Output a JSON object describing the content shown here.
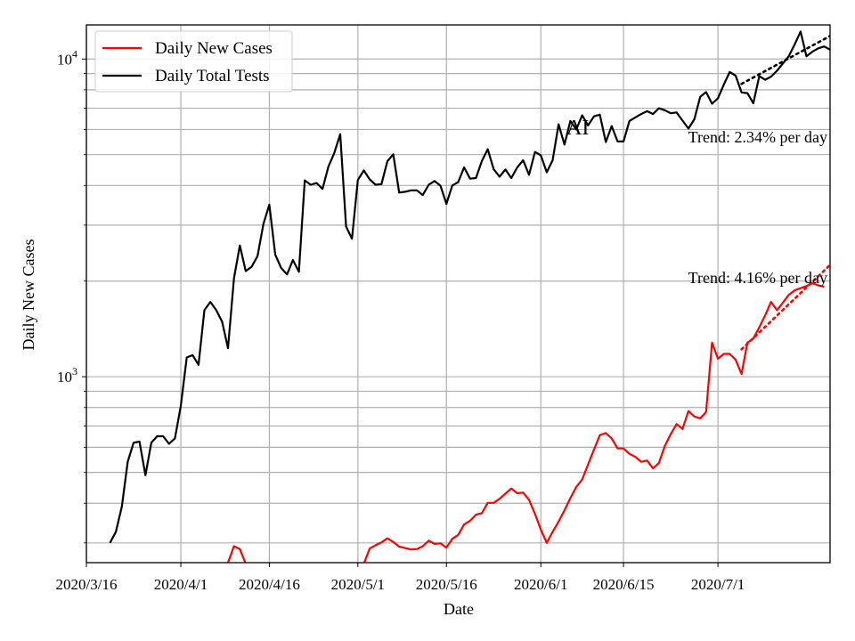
{
  "chart_data": {
    "type": "line",
    "title": "",
    "xlabel": "Date",
    "ylabel": "Daily New Cases",
    "y_scale": "log",
    "ylim": [
      260,
      12800
    ],
    "x_tick_labels": [
      "2020/3/16",
      "2020/4/1",
      "2020/4/16",
      "2020/5/1",
      "2020/5/16",
      "2020/6/1",
      "2020/6/15",
      "2020/7/1"
    ],
    "x_tick_dates": [
      "2020-03-16",
      "2020-04-01",
      "2020-04-16",
      "2020-05-01",
      "2020-05-16",
      "2020-06-01",
      "2020-06-15",
      "2020-07-01"
    ],
    "x_range": [
      "2020-03-16",
      "2020-07-20"
    ],
    "y_major_ticks": [
      {
        "value": 1000,
        "base": "10",
        "exp": "3"
      },
      {
        "value": 10000,
        "base": "10",
        "exp": "4"
      }
    ],
    "y_minor_ticks": [
      300,
      400,
      500,
      600,
      700,
      800,
      900,
      2000,
      3000,
      4000,
      5000,
      6000,
      7000,
      8000,
      9000
    ],
    "grid": true,
    "legend_position": "top-left",
    "series": [
      {
        "name": "Daily New Cases",
        "color": "#ff0000",
        "points": [
          [
            "2020-04-09",
            260
          ],
          [
            "2020-04-10",
            293
          ],
          [
            "2020-04-11",
            287
          ],
          [
            "2020-04-12",
            258
          ]
        ],
        "points_b": [
          [
            "2020-05-02",
            258
          ],
          [
            "2020-05-03",
            288
          ],
          [
            "2020-05-04",
            295
          ],
          [
            "2020-05-05",
            301
          ],
          [
            "2020-05-06",
            310
          ],
          [
            "2020-05-07",
            302
          ],
          [
            "2020-05-08",
            292
          ],
          [
            "2020-05-09",
            289
          ],
          [
            "2020-05-10",
            286
          ],
          [
            "2020-05-11",
            287
          ],
          [
            "2020-05-12",
            293
          ],
          [
            "2020-05-13",
            305
          ],
          [
            "2020-05-14",
            298
          ],
          [
            "2020-05-15",
            299
          ],
          [
            "2020-05-16",
            290
          ],
          [
            "2020-05-17",
            309
          ],
          [
            "2020-05-18",
            318
          ],
          [
            "2020-05-19",
            343
          ],
          [
            "2020-05-20",
            352
          ],
          [
            "2020-05-21",
            368
          ],
          [
            "2020-05-22",
            372
          ],
          [
            "2020-05-23",
            401
          ],
          [
            "2020-05-24",
            401
          ],
          [
            "2020-05-25",
            413
          ],
          [
            "2020-05-26",
            429
          ],
          [
            "2020-05-27",
            445
          ],
          [
            "2020-05-28",
            430
          ],
          [
            "2020-05-29",
            432
          ],
          [
            "2020-05-30",
            410
          ],
          [
            "2020-05-31",
            370
          ],
          [
            "2020-06-01",
            330
          ],
          [
            "2020-06-02",
            300
          ],
          [
            "2020-06-03",
            325
          ],
          [
            "2020-06-04",
            350
          ],
          [
            "2020-06-05",
            380
          ],
          [
            "2020-06-06",
            415
          ],
          [
            "2020-06-07",
            450
          ],
          [
            "2020-06-08",
            475
          ],
          [
            "2020-06-09",
            530
          ],
          [
            "2020-06-10",
            590
          ],
          [
            "2020-06-11",
            655
          ],
          [
            "2020-06-12",
            665
          ],
          [
            "2020-06-13",
            640
          ],
          [
            "2020-06-14",
            595
          ],
          [
            "2020-06-15",
            595
          ],
          [
            "2020-06-16",
            572
          ],
          [
            "2020-06-17",
            560
          ],
          [
            "2020-06-18",
            540
          ],
          [
            "2020-06-19",
            545
          ],
          [
            "2020-06-20",
            515
          ],
          [
            "2020-06-21",
            535
          ],
          [
            "2020-06-22",
            605
          ],
          [
            "2020-06-23",
            660
          ],
          [
            "2020-06-24",
            710
          ],
          [
            "2020-06-25",
            685
          ],
          [
            "2020-06-26",
            780
          ],
          [
            "2020-06-27",
            750
          ],
          [
            "2020-06-28",
            740
          ],
          [
            "2020-06-29",
            775
          ],
          [
            "2020-06-30",
            1280
          ],
          [
            "2020-07-01",
            1140
          ],
          [
            "2020-07-02",
            1180
          ],
          [
            "2020-07-03",
            1180
          ],
          [
            "2020-07-04",
            1130
          ],
          [
            "2020-07-05",
            1020
          ],
          [
            "2020-07-06",
            1280
          ],
          [
            "2020-07-07",
            1320
          ],
          [
            "2020-07-08",
            1430
          ],
          [
            "2020-07-09",
            1560
          ],
          [
            "2020-07-10",
            1720
          ],
          [
            "2020-07-11",
            1620
          ],
          [
            "2020-07-12",
            1710
          ],
          [
            "2020-07-13",
            1810
          ],
          [
            "2020-07-14",
            1870
          ],
          [
            "2020-07-15",
            1900
          ],
          [
            "2020-07-16",
            1930
          ],
          [
            "2020-07-17",
            1970
          ],
          [
            "2020-07-18",
            1940
          ],
          [
            "2020-07-19",
            1920
          ]
        ]
      },
      {
        "name": "Daily Total Tests",
        "color": "#000000",
        "points": [
          [
            "2020-03-20",
            300
          ],
          [
            "2020-03-21",
            325
          ],
          [
            "2020-03-22",
            390
          ],
          [
            "2020-03-23",
            540
          ],
          [
            "2020-03-24",
            620
          ],
          [
            "2020-03-25",
            625
          ],
          [
            "2020-03-26",
            490
          ],
          [
            "2020-03-27",
            620
          ],
          [
            "2020-03-28",
            650
          ],
          [
            "2020-03-29",
            650
          ],
          [
            "2020-03-30",
            615
          ],
          [
            "2020-03-31",
            640
          ],
          [
            "2020-04-01",
            810
          ],
          [
            "2020-04-02",
            1150
          ],
          [
            "2020-04-03",
            1170
          ],
          [
            "2020-04-04",
            1090
          ],
          [
            "2020-04-05",
            1620
          ],
          [
            "2020-04-06",
            1720
          ],
          [
            "2020-04-07",
            1620
          ],
          [
            "2020-04-08",
            1490
          ],
          [
            "2020-04-09",
            1230
          ],
          [
            "2020-04-10",
            2040
          ],
          [
            "2020-04-11",
            2590
          ],
          [
            "2020-04-12",
            2150
          ],
          [
            "2020-04-13",
            2220
          ],
          [
            "2020-04-14",
            2400
          ],
          [
            "2020-04-15",
            3030
          ],
          [
            "2020-04-16",
            3480
          ],
          [
            "2020-04-17",
            2420
          ],
          [
            "2020-04-18",
            2200
          ],
          [
            "2020-04-19",
            2100
          ],
          [
            "2020-04-20",
            2330
          ],
          [
            "2020-04-21",
            2140
          ],
          [
            "2020-04-22",
            4150
          ],
          [
            "2020-04-23",
            4020
          ],
          [
            "2020-04-24",
            4070
          ],
          [
            "2020-04-25",
            3900
          ],
          [
            "2020-04-26",
            4580
          ],
          [
            "2020-04-27",
            5060
          ],
          [
            "2020-04-28",
            5800
          ],
          [
            "2020-04-29",
            2970
          ],
          [
            "2020-04-30",
            2720
          ],
          [
            "2020-05-01",
            4160
          ],
          [
            "2020-05-02",
            4460
          ],
          [
            "2020-05-03",
            4180
          ],
          [
            "2020-05-04",
            4020
          ],
          [
            "2020-05-05",
            4040
          ],
          [
            "2020-05-06",
            4770
          ],
          [
            "2020-05-07",
            5010
          ],
          [
            "2020-05-08",
            3800
          ],
          [
            "2020-05-09",
            3820
          ],
          [
            "2020-05-10",
            3860
          ],
          [
            "2020-05-11",
            3860
          ],
          [
            "2020-05-12",
            3730
          ],
          [
            "2020-05-13",
            4020
          ],
          [
            "2020-05-14",
            4130
          ],
          [
            "2020-05-15",
            3990
          ],
          [
            "2020-05-16",
            3500
          ],
          [
            "2020-05-17",
            4000
          ],
          [
            "2020-05-18",
            4100
          ],
          [
            "2020-05-19",
            4560
          ],
          [
            "2020-05-20",
            4200
          ],
          [
            "2020-05-21",
            4220
          ],
          [
            "2020-05-22",
            4770
          ],
          [
            "2020-05-23",
            5200
          ],
          [
            "2020-05-24",
            4500
          ],
          [
            "2020-05-25",
            4260
          ],
          [
            "2020-05-26",
            4490
          ],
          [
            "2020-05-27",
            4220
          ],
          [
            "2020-05-28",
            4560
          ],
          [
            "2020-05-29",
            4800
          ],
          [
            "2020-05-30",
            4320
          ],
          [
            "2020-05-31",
            5100
          ],
          [
            "2020-06-01",
            4970
          ],
          [
            "2020-06-02",
            4400
          ],
          [
            "2020-06-03",
            4800
          ],
          [
            "2020-06-04",
            6230
          ],
          [
            "2020-06-05",
            5380
          ],
          [
            "2020-06-06",
            6380
          ],
          [
            "2020-06-07",
            6000
          ],
          [
            "2020-06-08",
            6650
          ],
          [
            "2020-06-09",
            6180
          ],
          [
            "2020-06-10",
            6600
          ],
          [
            "2020-06-11",
            6680
          ],
          [
            "2020-06-12",
            5480
          ],
          [
            "2020-06-13",
            6150
          ],
          [
            "2020-06-14",
            5500
          ],
          [
            "2020-06-15",
            5500
          ],
          [
            "2020-06-16",
            6380
          ],
          [
            "2020-06-17",
            6550
          ],
          [
            "2020-06-18",
            6710
          ],
          [
            "2020-06-19",
            6850
          ],
          [
            "2020-06-20",
            6710
          ],
          [
            "2020-06-21",
            7000
          ],
          [
            "2020-06-22",
            6900
          ],
          [
            "2020-06-23",
            6750
          ],
          [
            "2020-06-24",
            6790
          ],
          [
            "2020-06-25",
            6400
          ],
          [
            "2020-06-26",
            6040
          ],
          [
            "2020-06-27",
            6460
          ],
          [
            "2020-06-28",
            7600
          ],
          [
            "2020-06-29",
            7870
          ],
          [
            "2020-06-30",
            7230
          ],
          [
            "2020-07-01",
            7520
          ],
          [
            "2020-07-02",
            8300
          ],
          [
            "2020-07-03",
            9100
          ],
          [
            "2020-07-04",
            8860
          ],
          [
            "2020-07-05",
            7850
          ],
          [
            "2020-07-06",
            7810
          ],
          [
            "2020-07-07",
            7250
          ],
          [
            "2020-07-08",
            8830
          ],
          [
            "2020-07-09",
            8600
          ],
          [
            "2020-07-10",
            8800
          ],
          [
            "2020-07-11",
            9180
          ],
          [
            "2020-07-12",
            9680
          ],
          [
            "2020-07-13",
            10200
          ],
          [
            "2020-07-14",
            11100
          ],
          [
            "2020-07-15",
            12200
          ],
          [
            "2020-07-16",
            10200
          ],
          [
            "2020-07-17",
            10540
          ],
          [
            "2020-07-18",
            10800
          ],
          [
            "2020-07-19",
            10950
          ],
          [
            "2020-07-20",
            10700
          ]
        ]
      }
    ],
    "trends": [
      {
        "series": "Daily Total Tests",
        "label": "Trend: 2.34% per day",
        "rate_per_day": 0.0234,
        "start_date": "2020-07-05",
        "start_value": 8350,
        "end_date": "2020-07-20",
        "color": "#000000"
      },
      {
        "series": "Daily New Cases",
        "label": "Trend: 4.16% per day",
        "rate_per_day": 0.0416,
        "start_date": "2020-07-05",
        "start_value": 1220,
        "end_date": "2020-07-20",
        "color": "#ff0000"
      }
    ],
    "overlay_text": "AI"
  },
  "legend": {
    "items": [
      {
        "label": "Daily New Cases",
        "color": "#ff0000"
      },
      {
        "label": "Daily Total Tests",
        "color": "#000000"
      }
    ]
  }
}
